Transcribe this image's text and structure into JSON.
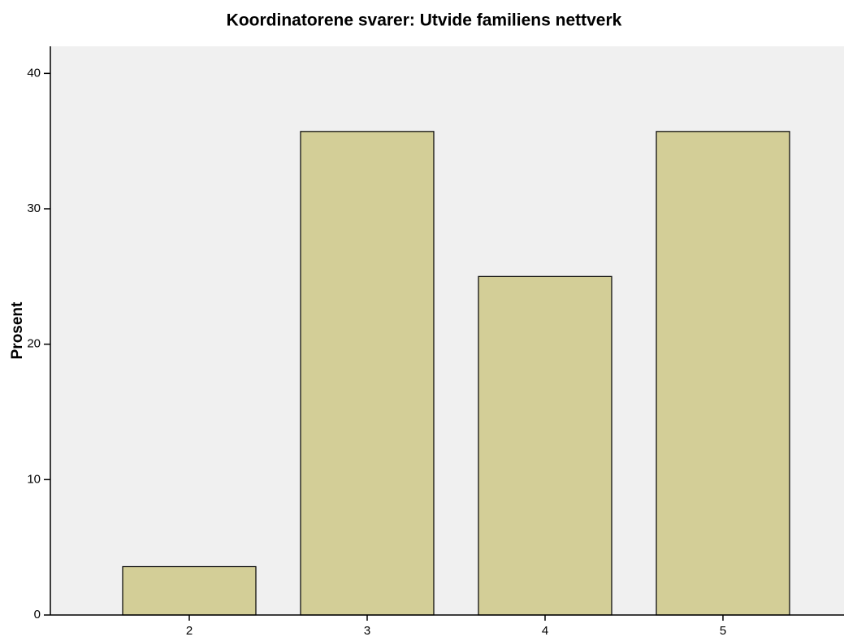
{
  "chart_data": {
    "type": "bar",
    "title": "Koordinatorene svarer: Utvide familiens nettverk",
    "y_label": "Prosent",
    "categories": [
      "2",
      "3",
      "4",
      "5"
    ],
    "values": [
      3.57,
      35.71,
      25,
      35.71
    ],
    "color": "#d3ce97",
    "ylim": [
      0,
      42
    ],
    "yticks": [
      0,
      10,
      20,
      30,
      40
    ],
    "grid": false
  }
}
